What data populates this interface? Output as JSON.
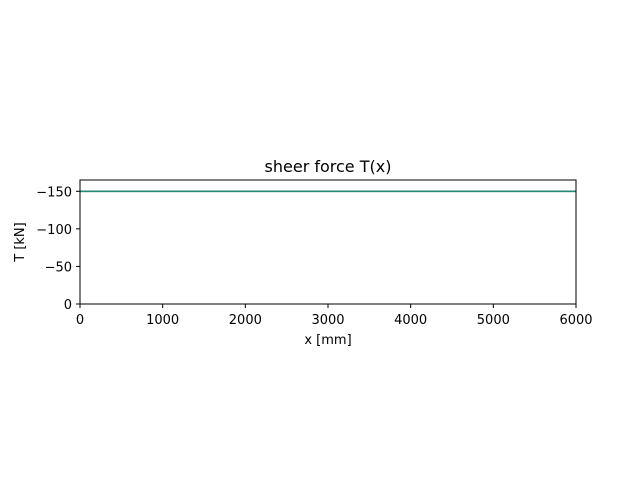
{
  "chart_data": {
    "type": "line",
    "title": "sheer force T(x)",
    "xlabel": "x [mm]",
    "ylabel": "T [kN]",
    "xlim": [
      0,
      6000
    ],
    "ylim": [
      0,
      -165
    ],
    "y_axis_inverted": true,
    "x_ticks": [
      0,
      1000,
      2000,
      3000,
      4000,
      5000,
      6000
    ],
    "x_tick_labels": [
      "0",
      "1000",
      "2000",
      "3000",
      "4000",
      "5000",
      "6000"
    ],
    "y_ticks": [
      0,
      -50,
      -100,
      -150
    ],
    "y_tick_labels": [
      "0",
      "−50",
      "−100",
      "−150"
    ],
    "grid": false,
    "legend": "none",
    "series": [
      {
        "x": [
          0,
          6000
        ],
        "y": [
          -150,
          -150
        ],
        "color": "#1f77b4",
        "overlay_color": "#2ca02c"
      }
    ]
  }
}
